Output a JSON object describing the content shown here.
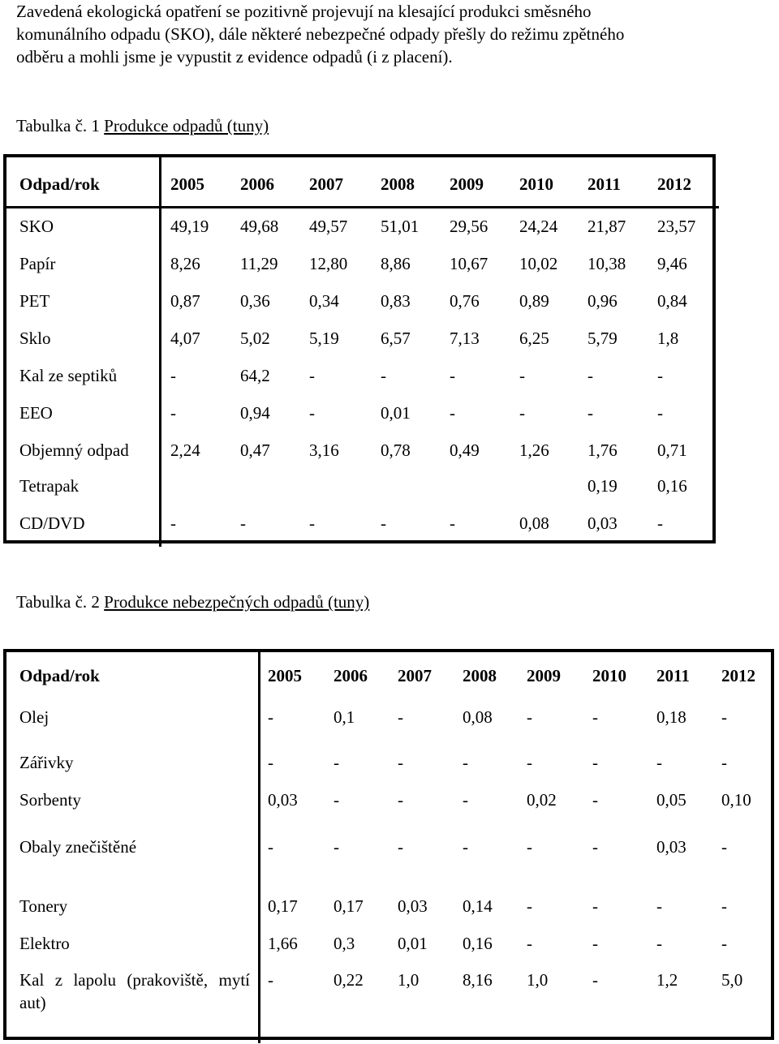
{
  "intro": {
    "lines": [
      "Zavedená ekologická opatření se pozitivně projevují na klesající produkci směsného",
      "komunálního odpadu (SKO), dále některé nebezpečné odpady přešly do režimu zpětného",
      "odběru a mohli jsme je vypustit z evidence odpadů (i z placení)."
    ]
  },
  "table1": {
    "caption_prefix": "Tabulka č. 1",
    "caption_title": "Produkce odpadů (tuny)",
    "header": [
      "Odpad/rok",
      "2005",
      "2006",
      "2007",
      "2008",
      "2009",
      "2010",
      "2011",
      "2012"
    ],
    "rows": [
      [
        "SKO",
        "49,19",
        "49,68",
        "49,57",
        "51,01",
        "29,56",
        "24,24",
        "21,87",
        "23,57"
      ],
      [
        "Papír",
        "8,26",
        "11,29",
        "12,80",
        "8,86",
        "10,67",
        "10,02",
        "10,38",
        "9,46"
      ],
      [
        "PET",
        "0,87",
        "0,36",
        "0,34",
        "0,83",
        "0,76",
        "0,89",
        "0,96",
        "0,84"
      ],
      [
        "Sklo",
        "4,07",
        "5,02",
        "5,19",
        "6,57",
        "7,13",
        "6,25",
        "5,79",
        "1,8"
      ],
      [
        "Kal ze septiků",
        "-",
        "64,2",
        "-",
        "-",
        "-",
        "-",
        "-",
        "-"
      ],
      [
        "EEO",
        "-",
        "0,94",
        "-",
        "0,01",
        "-",
        "-",
        "-",
        "-"
      ],
      [
        "Objemný odpad",
        "2,24",
        "0,47",
        "3,16",
        "0,78",
        "0,49",
        "1,26",
        "1,76",
        "0,71"
      ],
      [
        "Tetrapak",
        "",
        "",
        "",
        "",
        "",
        "",
        "0,19",
        "0,16"
      ],
      [
        "CD/DVD",
        "-",
        "-",
        "-",
        "-",
        "-",
        "0,08",
        "0,03",
        "-"
      ]
    ]
  },
  "table2": {
    "caption_prefix": "Tabulka č. 2",
    "caption_title": "Produkce nebezpečných odpadů (tuny)",
    "header": [
      "Odpad/rok",
      "2005",
      "2006",
      "2007",
      "2008",
      "2009",
      "2010",
      "2011",
      "2012"
    ],
    "rows": [
      [
        "Olej",
        "-",
        "0,1",
        "-",
        "0,08",
        "-",
        "-",
        "0,18",
        "-"
      ],
      [
        "Zářivky",
        "-",
        "-",
        "-",
        "-",
        "-",
        "-",
        "-",
        "-"
      ],
      [
        "Sorbenty",
        "0,03",
        "-",
        "-",
        "-",
        "0,02",
        "-",
        "0,05",
        "0,10"
      ],
      [
        "Obaly znečištěné",
        "-",
        "-",
        "-",
        "-",
        "-",
        "-",
        "0,03",
        "-"
      ],
      [
        "Tonery",
        "0,17",
        "0,17",
        "0,03",
        "0,14",
        "-",
        "-",
        "-",
        "-"
      ],
      [
        "Elektro",
        "1,66",
        "0,3",
        "0,01",
        "0,16",
        "-",
        "-",
        "-",
        "-"
      ],
      [
        "Kal z lapolu (prakoviště, mytí aut)",
        "-",
        "0,22",
        "1,0",
        "8,16",
        "1,0",
        "-",
        "1,2",
        "5,0"
      ]
    ]
  }
}
